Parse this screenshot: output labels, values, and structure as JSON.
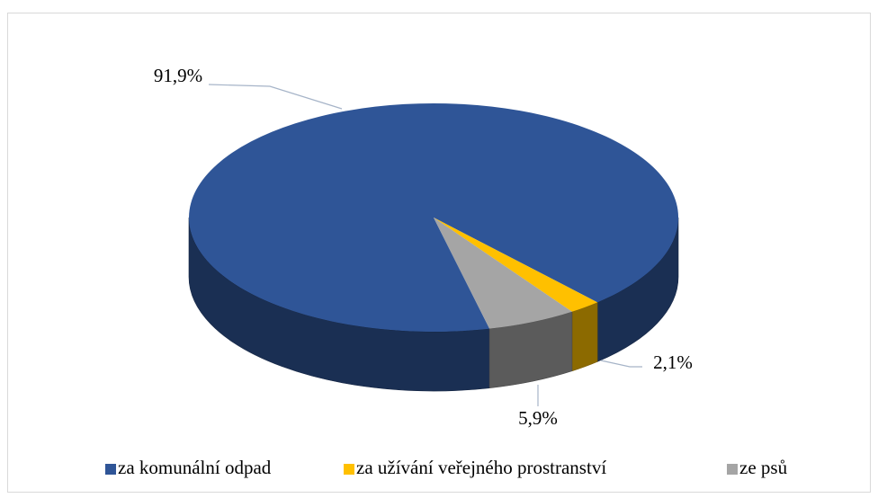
{
  "chart_data": {
    "type": "pie3d",
    "categories": [
      "za komunální odpad",
      "za užívání veřejného prostranství",
      "ze psů"
    ],
    "values": [
      91.9,
      2.1,
      5.9
    ],
    "value_labels": [
      "91,9%",
      "2,1%",
      "5,9%"
    ],
    "colors": [
      "#2f5597",
      "#ffc000",
      "#a5a5a5"
    ],
    "legend": "bottom"
  }
}
